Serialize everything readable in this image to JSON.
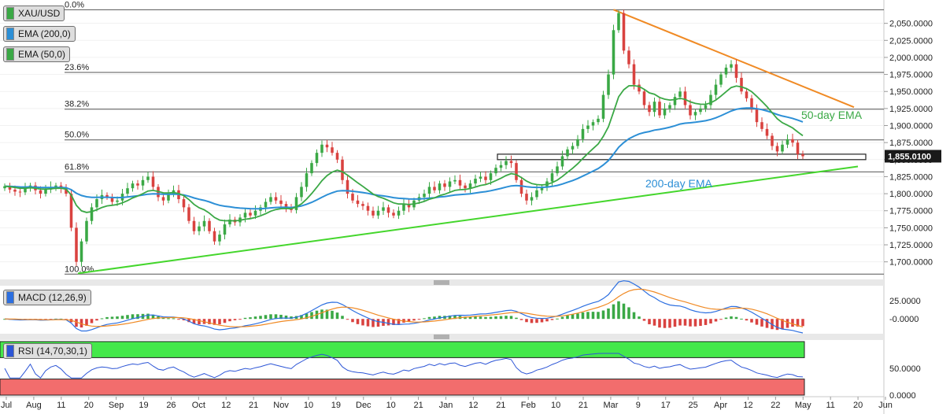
{
  "symbol": "XAU/USD",
  "colors": {
    "candle_up": "#3aa845",
    "candle_down": "#d9423f",
    "ema200": "#2c8fd6",
    "ema50": "#3aa845",
    "resistance": "#f08a24",
    "support": "#44d62c",
    "macd_line": "#2c6fe0",
    "signal_line": "#f08a24",
    "rsi_line": "#2c55d6",
    "rsi_overbought": "#44e84a",
    "rsi_oversold": "#f26d6d",
    "price_label_bg": "#1a1a1a"
  },
  "legends": [
    {
      "text": "XAU/USD",
      "color": "#3aa845"
    },
    {
      "text": "EMA (200,0)",
      "color": "#2c8fd6"
    },
    {
      "text": "EMA (50,0)",
      "color": "#3aa845"
    },
    {
      "text": "MACD (12,26,9)",
      "color": "#2c6fe0"
    },
    {
      "text": "RSI (14,70,30,1)",
      "color": "#2c55d6"
    }
  ],
  "annotations": {
    "ema50": "50-day EMA",
    "ema200": "200-day EMA"
  },
  "current_price": "1,855.0100",
  "chart_data": [
    {
      "type": "candlestick",
      "panel": "price",
      "y_ticks": [
        "2,050.0000",
        "2,025.0000",
        "2,000.0000",
        "1,975.0000",
        "1,950.0000",
        "1,925.0000",
        "1,900.0000",
        "1,875.0000",
        "1,850.0000",
        "1,825.0000",
        "1,800.0000",
        "1,775.0000",
        "1,750.0000",
        "1,725.0000",
        "1,700.0000"
      ],
      "ylim": [
        1680,
        2075
      ],
      "x_ticks": [
        "Jul",
        "Aug",
        "11",
        "20",
        "Sep",
        "19",
        "26",
        "Oct",
        "12",
        "21",
        "Nov",
        "10",
        "19",
        "Dec",
        "10",
        "21",
        "Jan",
        "12",
        "21",
        "Feb",
        "10",
        "21",
        "Mar",
        "9",
        "17",
        "25",
        "Apr",
        "12",
        "22",
        "May",
        "11",
        "20",
        "Jun"
      ],
      "fibonacci": [
        {
          "label": "0.0%",
          "value": 2070
        },
        {
          "label": "23.6%",
          "value": 1978
        },
        {
          "label": "38.2%",
          "value": 1924
        },
        {
          "label": "50.0%",
          "value": 1879
        },
        {
          "label": "61.8%",
          "value": 1832
        },
        {
          "label": "100.0%",
          "value": 1682
        }
      ],
      "support_zone": [
        1850,
        1858
      ],
      "close_series": [
        1811,
        1806,
        1803,
        1802,
        1808,
        1812,
        1805,
        1800,
        1806,
        1810,
        1812,
        1808,
        1800,
        1750,
        1700,
        1730,
        1760,
        1780,
        1792,
        1798,
        1795,
        1788,
        1790,
        1800,
        1808,
        1815,
        1812,
        1820,
        1825,
        1810,
        1795,
        1790,
        1800,
        1805,
        1792,
        1780,
        1760,
        1745,
        1752,
        1760,
        1745,
        1730,
        1740,
        1755,
        1762,
        1758,
        1765,
        1772,
        1768,
        1775,
        1780,
        1788,
        1795,
        1790,
        1785,
        1780,
        1776,
        1795,
        1810,
        1830,
        1845,
        1860,
        1872,
        1868,
        1860,
        1850,
        1820,
        1800,
        1790,
        1785,
        1782,
        1775,
        1768,
        1775,
        1780,
        1772,
        1768,
        1775,
        1785,
        1780,
        1790,
        1795,
        1800,
        1810,
        1805,
        1815,
        1810,
        1818,
        1820,
        1812,
        1808,
        1815,
        1822,
        1825,
        1820,
        1830,
        1838,
        1842,
        1848,
        1845,
        1820,
        1800,
        1790,
        1795,
        1805,
        1810,
        1818,
        1830,
        1840,
        1855,
        1865,
        1870,
        1880,
        1895,
        1900,
        1905,
        1910,
        1945,
        1975,
        2040,
        2065,
        2010,
        1990,
        1960,
        1950,
        1930,
        1920,
        1935,
        1915,
        1925,
        1930,
        1942,
        1950,
        1930,
        1915,
        1920,
        1925,
        1930,
        1945,
        1960,
        1975,
        1985,
        1990,
        1970,
        1950,
        1940,
        1925,
        1905,
        1895,
        1885,
        1870,
        1862,
        1872,
        1880,
        1875,
        1858,
        1855
      ]
    },
    {
      "type": "bar",
      "panel": "macd",
      "name": "MACD (12,26,9)",
      "y_ticks": [
        "25.0000",
        "-0.0000"
      ],
      "ylim": [
        -18,
        42
      ]
    },
    {
      "type": "line",
      "panel": "rsi",
      "name": "RSI (14,70,30,1)",
      "y_ticks": [
        "50.0000",
        "0.0000"
      ],
      "ylim": [
        0,
        100
      ],
      "levels": [
        70,
        30
      ]
    }
  ]
}
